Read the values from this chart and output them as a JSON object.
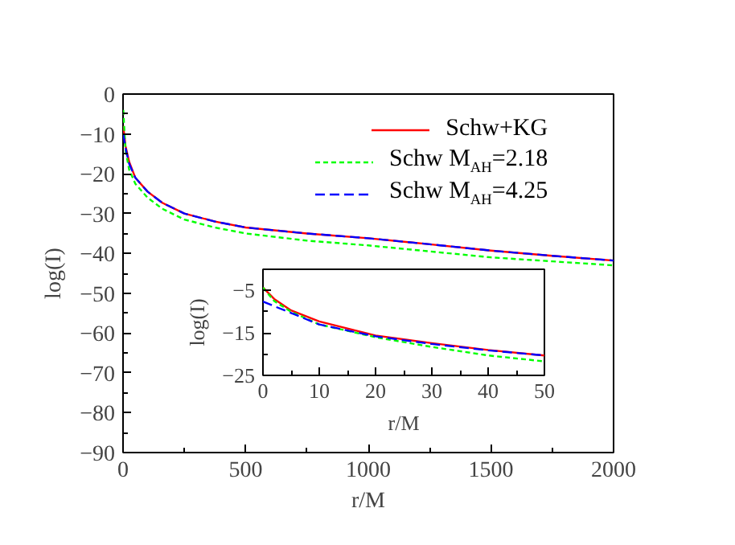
{
  "chart_data": [
    {
      "type": "line",
      "xlabel": "r/M",
      "ylabel": "log(I)",
      "xlim": [
        0,
        2000
      ],
      "ylim": [
        -90,
        0
      ],
      "xticks": [
        0,
        500,
        1000,
        1500,
        2000
      ],
      "yticks": [
        -90,
        -80,
        -70,
        -60,
        -50,
        -40,
        -30,
        -20,
        -10,
        0
      ],
      "legend": "top right",
      "x": [
        1,
        10,
        25,
        50,
        100,
        160,
        250,
        375,
        500,
        750,
        1000,
        1250,
        1500,
        1750,
        2000
      ],
      "series": [
        {
          "name": "Schw+KG",
          "color": "#ff0000",
          "line_style": "solid",
          "values": [
            -8,
            -13,
            -17,
            -21,
            -24.5,
            -27.3,
            -30,
            -32,
            -33.5,
            -35,
            -36.2,
            -37.7,
            -39.3,
            -40.6,
            -41.8
          ]
        },
        {
          "name": "Schw M$_{AH}$=2.18",
          "color": "#00ff00",
          "line_style": "dotted",
          "values": [
            -4,
            -14,
            -19,
            -22.5,
            -26,
            -28.8,
            -31.5,
            -33.5,
            -35,
            -36.8,
            -38,
            -39.5,
            -41,
            -42,
            -43
          ]
        },
        {
          "name": "Schw M$_{AH}$=4.25",
          "color": "#0000ff",
          "line_style": "dashed",
          "values": [
            -10,
            -13.5,
            -17.5,
            -21,
            -24.5,
            -27.3,
            -30,
            -32,
            -33.5,
            -35,
            -36.2,
            -37.7,
            -39.3,
            -40.6,
            -41.8
          ]
        }
      ]
    },
    {
      "type": "line",
      "xlabel": "r/M",
      "ylabel": "log(I)",
      "xlim": [
        0,
        50
      ],
      "ylim": [
        -25,
        0
      ],
      "xticks": [
        0,
        10,
        20,
        30,
        40,
        50
      ],
      "yticks": [
        -25,
        -15,
        -5
      ],
      "x": [
        0,
        2,
        5,
        10,
        20,
        30,
        40,
        50
      ],
      "series": [
        {
          "color": "#ff0000",
          "line_style": "solid",
          "values": [
            -4.3,
            -7,
            -9.7,
            -12.3,
            -15.6,
            -17.4,
            -19,
            -20.3
          ]
        },
        {
          "color": "#00ff00",
          "line_style": "dotted",
          "values": [
            -4.3,
            -7.5,
            -10,
            -13,
            -16,
            -18.3,
            -20.3,
            -21.7
          ]
        },
        {
          "color": "#0000ff",
          "line_style": "dashed",
          "values": [
            -7.6,
            -8.7,
            -10.3,
            -13,
            -15.8,
            -17.6,
            -19.1,
            -20.3
          ]
        }
      ]
    }
  ]
}
